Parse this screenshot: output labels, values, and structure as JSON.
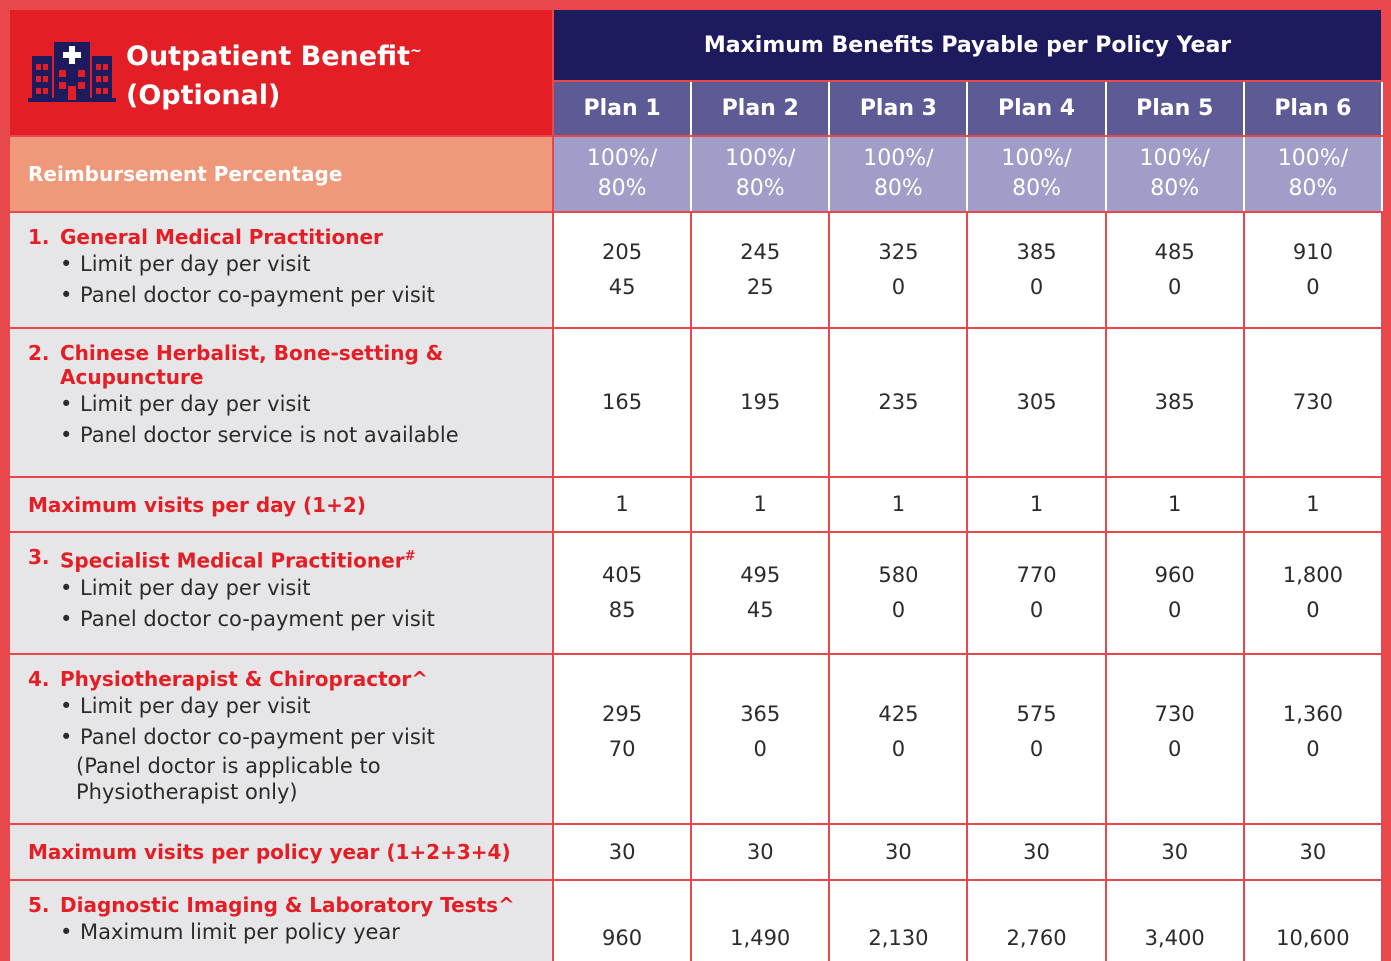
{
  "header": {
    "title": "Outpatient Benefit",
    "title_mark": "~",
    "subtitle": "(Optional)",
    "group_heading": "Maximum Benefits Payable per Policy Year",
    "plans": [
      "Plan 1",
      "Plan 2",
      "Plan 3",
      "Plan 4",
      "Plan 5",
      "Plan 6"
    ]
  },
  "reimbursement": {
    "label": "Reimbursement Percentage",
    "values": [
      [
        "100%/",
        "80%"
      ],
      [
        "100%/",
        "80%"
      ],
      [
        "100%/",
        "80%"
      ],
      [
        "100%/",
        "80%"
      ],
      [
        "100%/",
        "80%"
      ],
      [
        "100%/",
        "80%"
      ]
    ]
  },
  "rows": [
    {
      "number": "1.",
      "heading": "General Medical Practitioner",
      "items": [
        "Limit per day per visit",
        "Panel doctor co-payment per visit"
      ],
      "values": [
        [
          "205",
          "45"
        ],
        [
          "245",
          "25"
        ],
        [
          "325",
          "0"
        ],
        [
          "385",
          "0"
        ],
        [
          "485",
          "0"
        ],
        [
          "910",
          "0"
        ]
      ]
    },
    {
      "number": "2.",
      "heading": "Chinese Herbalist, Bone-setting & Acupuncture",
      "items": [
        "Limit per day per visit",
        "Panel doctor service is not available"
      ],
      "values": [
        [
          "165"
        ],
        [
          "195"
        ],
        [
          "235"
        ],
        [
          "305"
        ],
        [
          "385"
        ],
        [
          "730"
        ]
      ]
    },
    {
      "heading": "Maximum visits per day (1+2)",
      "values": [
        [
          "1"
        ],
        [
          "1"
        ],
        [
          "1"
        ],
        [
          "1"
        ],
        [
          "1"
        ],
        [
          "1"
        ]
      ]
    },
    {
      "number": "3.",
      "heading": "Specialist Medical Practitioner",
      "sup": "#",
      "items": [
        "Limit per day per visit",
        "Panel doctor co-payment per visit"
      ],
      "values": [
        [
          "405",
          "85"
        ],
        [
          "495",
          "45"
        ],
        [
          "580",
          "0"
        ],
        [
          "770",
          "0"
        ],
        [
          "960",
          "0"
        ],
        [
          "1,800",
          "0"
        ]
      ]
    },
    {
      "number": "4.",
      "heading": "Physiotherapist & Chiropractor^",
      "items": [
        "Limit per day per visit",
        "Panel doctor co-payment per visit"
      ],
      "note": "(Panel doctor is applicable to Physiotherapist only)",
      "values": [
        [
          "295",
          "70"
        ],
        [
          "365",
          "0"
        ],
        [
          "425",
          "0"
        ],
        [
          "575",
          "0"
        ],
        [
          "730",
          "0"
        ],
        [
          "1,360",
          "0"
        ]
      ]
    },
    {
      "heading": "Maximum visits per policy year (1+2+3+4)",
      "values": [
        [
          "30"
        ],
        [
          "30"
        ],
        [
          "30"
        ],
        [
          "30"
        ],
        [
          "30"
        ],
        [
          "30"
        ]
      ]
    },
    {
      "number": "5.",
      "heading": "Diagnostic Imaging & Laboratory Tests^",
      "items": [
        "Maximum limit per policy year"
      ],
      "values": [
        [
          "960"
        ],
        [
          "1,490"
        ],
        [
          "2,130"
        ],
        [
          "2,760"
        ],
        [
          "3,400"
        ],
        [
          "10,600"
        ]
      ]
    }
  ]
}
